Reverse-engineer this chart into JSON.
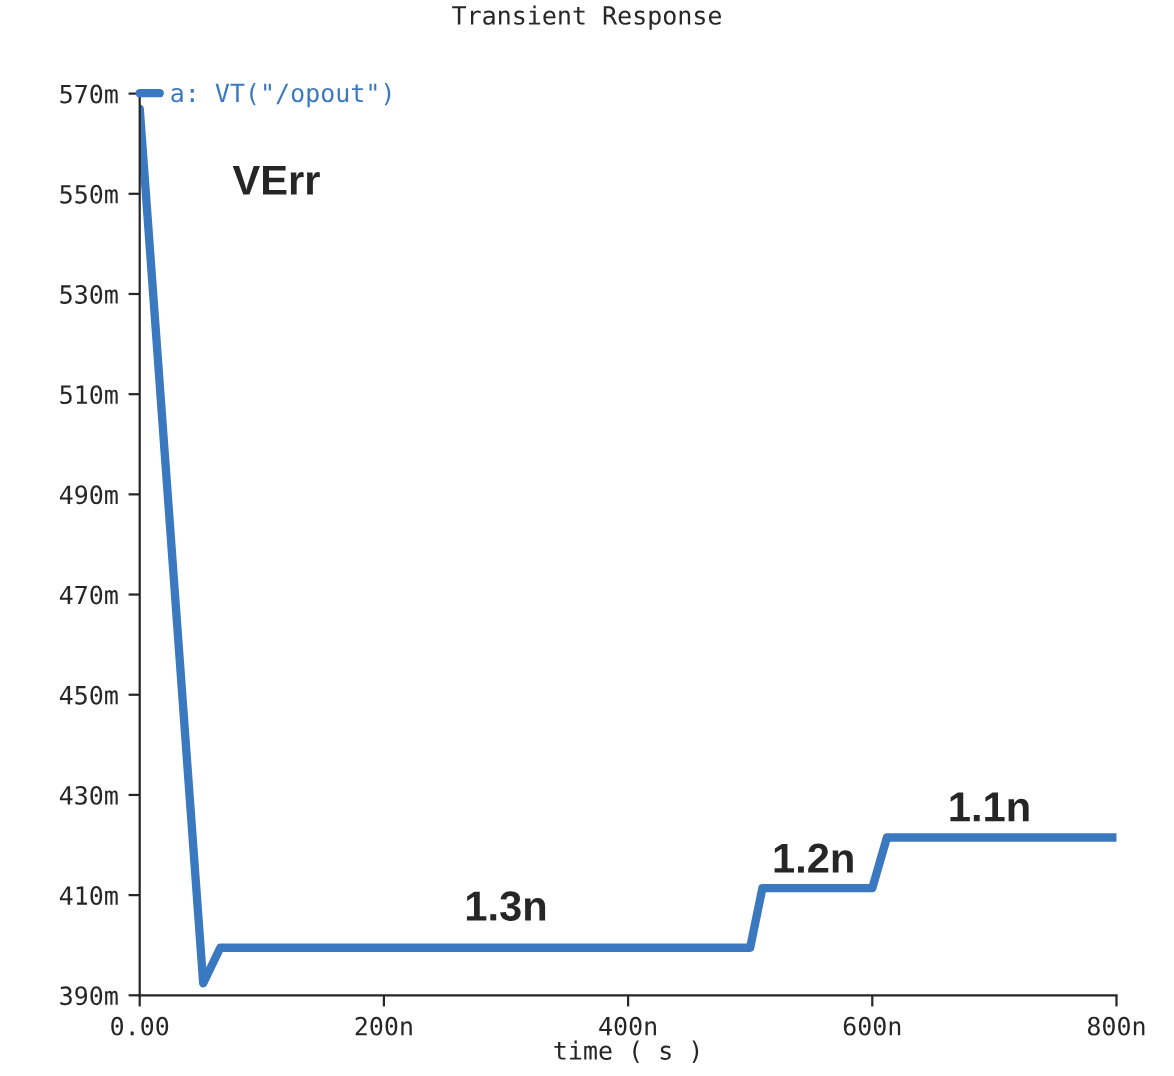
{
  "chart_data": {
    "type": "line",
    "title": "Transient Response",
    "xlabel": "time ( s )",
    "x": [
      0,
      52,
      66,
      100,
      200,
      300,
      400,
      500,
      510,
      600,
      612,
      700,
      800
    ],
    "series": [
      {
        "name": "a: VT(\"/opout\")",
        "color": "#3a78c0",
        "values": [
          567,
          392.4,
          399.5,
          399.5,
          399.5,
          399.5,
          399.5,
          399.5,
          411.4,
          411.4,
          421.5,
          421.5,
          421.5
        ]
      }
    ],
    "xlim": [
      0,
      800
    ],
    "xticks": [
      {
        "value": 0,
        "label": "0.00"
      },
      {
        "value": 200,
        "label": "200n"
      },
      {
        "value": 400,
        "label": "400n"
      },
      {
        "value": 600,
        "label": "600n"
      },
      {
        "value": 800,
        "label": "800n"
      }
    ],
    "ylim": [
      390,
      570
    ],
    "yticks": [
      {
        "value": 390,
        "label": "390m"
      },
      {
        "value": 410,
        "label": "410m"
      },
      {
        "value": 430,
        "label": "430m"
      },
      {
        "value": 450,
        "label": "450m"
      },
      {
        "value": 470,
        "label": "470m"
      },
      {
        "value": 490,
        "label": "490m"
      },
      {
        "value": 510,
        "label": "510m"
      },
      {
        "value": 530,
        "label": "530m"
      },
      {
        "value": 550,
        "label": "550m"
      },
      {
        "value": 570,
        "label": "570m"
      }
    ],
    "annotations": [
      "VErr",
      "1.3n",
      "1.2n",
      "1.1n"
    ],
    "legend": "top left",
    "grid": false,
    "marker": "none",
    "line_style": "solid"
  }
}
